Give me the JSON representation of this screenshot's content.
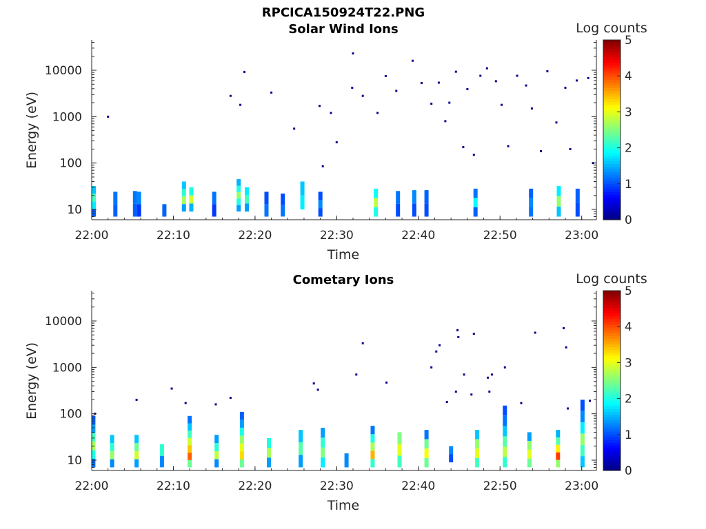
{
  "figure": {
    "title": "RPCICA150924T22.PNG"
  },
  "colors": {
    "axis": "#262626",
    "colormap": "jet"
  },
  "chart_data": [
    {
      "type": "heatmap",
      "title": "Solar Wind Ions",
      "xlabel": "Time",
      "ylabel": "Energy (eV)",
      "colorbar_label": "Log counts",
      "x_ticks": [
        "22:00",
        "22:10",
        "22:20",
        "22:30",
        "22:40",
        "22:50",
        "23:00"
      ],
      "xlim": [
        "22:00",
        "23:01.8"
      ],
      "yscale": "log",
      "ylim": [
        6,
        45000
      ],
      "y_ticks": [
        10,
        100,
        1000,
        10000
      ],
      "y_tick_labels": [
        "10",
        "100",
        "1000",
        "10000"
      ],
      "clim": [
        0,
        5
      ],
      "colorbar_ticks": [
        "0",
        "1",
        "2",
        "3",
        "4",
        "5"
      ],
      "columns": [
        {
          "t": 0.25,
          "e": [
            7,
            32
          ],
          "v": [
            1.1,
            1.8,
            2.2,
            1.6
          ]
        },
        {
          "t": 2.9,
          "e": [
            7,
            24
          ],
          "v": [
            1.1,
            1.2
          ]
        },
        {
          "t": 5.3,
          "e": [
            7,
            25
          ],
          "v": [
            1.1,
            1.2
          ]
        },
        {
          "t": 5.8,
          "e": [
            7,
            24
          ],
          "v": [
            0.9,
            1.3
          ]
        },
        {
          "t": 8.9,
          "e": [
            7,
            13
          ],
          "v": [
            1.1
          ]
        },
        {
          "t": 11.3,
          "e": [
            9,
            40
          ],
          "v": [
            1.4,
            2.7,
            2.1,
            1.6
          ]
        },
        {
          "t": 12.2,
          "e": [
            9,
            30
          ],
          "v": [
            1.5,
            2.9,
            2.0
          ]
        },
        {
          "t": 15.0,
          "e": [
            7,
            24
          ],
          "v": [
            0.9,
            1.2
          ]
        },
        {
          "t": 18.0,
          "e": [
            9,
            45
          ],
          "v": [
            1.4,
            2.0,
            2.6,
            2.0,
            1.5
          ]
        },
        {
          "t": 19.0,
          "e": [
            9,
            30
          ],
          "v": [
            1.4,
            2.2,
            1.8
          ]
        },
        {
          "t": 21.4,
          "e": [
            7,
            24
          ],
          "v": [
            1.2,
            1.0
          ]
        },
        {
          "t": 23.4,
          "e": [
            7,
            22
          ],
          "v": [
            1.2,
            1.0
          ]
        },
        {
          "t": 25.8,
          "e": [
            10,
            40
          ],
          "v": [
            1.8,
            1.6
          ]
        },
        {
          "t": 28.0,
          "e": [
            7,
            24
          ],
          "v": [
            1.0,
            1.3,
            1.0
          ]
        },
        {
          "t": 34.8,
          "e": [
            7,
            28
          ],
          "v": [
            2.0,
            2.8,
            1.9
          ]
        },
        {
          "t": 37.5,
          "e": [
            7,
            25
          ],
          "v": [
            1.0,
            1.2
          ]
        },
        {
          "t": 39.5,
          "e": [
            7,
            26
          ],
          "v": [
            1.0,
            1.3
          ]
        },
        {
          "t": 41.0,
          "e": [
            7,
            26
          ],
          "v": [
            1.0,
            1.1
          ]
        },
        {
          "t": 47.0,
          "e": [
            7,
            28
          ],
          "v": [
            1.1,
            1.9,
            1.2
          ]
        },
        {
          "t": 53.8,
          "e": [
            7,
            28
          ],
          "v": [
            1.2,
            1.3,
            1.1
          ]
        },
        {
          "t": 57.2,
          "e": [
            7,
            32
          ],
          "v": [
            1.6,
            2.6,
            1.8
          ]
        },
        {
          "t": 59.5,
          "e": [
            7,
            28
          ],
          "v": [
            1.0,
            1.1
          ]
        }
      ],
      "scatter": [
        [
          2.0,
          1000
        ],
        [
          17.0,
          2800
        ],
        [
          18.2,
          1800
        ],
        [
          18.7,
          9200
        ],
        [
          22.0,
          3300
        ],
        [
          24.8,
          550
        ],
        [
          27.9,
          1700
        ],
        [
          28.3,
          85
        ],
        [
          29.3,
          1200
        ],
        [
          30.0,
          280
        ],
        [
          32.0,
          23000
        ],
        [
          31.9,
          4200
        ],
        [
          33.2,
          2800
        ],
        [
          35.0,
          1200
        ],
        [
          36.0,
          7500
        ],
        [
          37.3,
          3600
        ],
        [
          39.3,
          16000
        ],
        [
          40.4,
          5300
        ],
        [
          41.6,
          1900
        ],
        [
          42.5,
          5400
        ],
        [
          43.3,
          800
        ],
        [
          43.8,
          2000
        ],
        [
          44.6,
          9300
        ],
        [
          45.5,
          220
        ],
        [
          46.0,
          3900
        ],
        [
          46.8,
          150
        ],
        [
          47.6,
          7600
        ],
        [
          48.4,
          11000
        ],
        [
          49.5,
          5800
        ],
        [
          50.2,
          1800
        ],
        [
          51.0,
          230
        ],
        [
          52.1,
          7600
        ],
        [
          53.2,
          4700
        ],
        [
          53.9,
          1500
        ],
        [
          55.0,
          180
        ],
        [
          55.8,
          9500
        ],
        [
          56.9,
          750
        ],
        [
          58.0,
          4200
        ],
        [
          58.6,
          200
        ],
        [
          59.4,
          6000
        ],
        [
          60.8,
          6800
        ],
        [
          61.4,
          100
        ]
      ]
    },
    {
      "type": "heatmap",
      "title": "Cometary Ions",
      "xlabel": "Time",
      "ylabel": "Energy (eV)",
      "colorbar_label": "Log counts",
      "x_ticks": [
        "22:00",
        "22:10",
        "22:20",
        "22:30",
        "22:40",
        "22:50",
        "23:00"
      ],
      "xlim": [
        "22:00",
        "23:01.8"
      ],
      "yscale": "log",
      "ylim": [
        6,
        45000
      ],
      "y_ticks": [
        10,
        100,
        1000,
        10000
      ],
      "y_tick_labels": [
        "10",
        "100",
        "1000",
        "10000"
      ],
      "clim": [
        0,
        5
      ],
      "colorbar_ticks": [
        "0",
        "1",
        "2",
        "3",
        "4",
        "5"
      ],
      "columns": [
        {
          "t": 0.2,
          "e": [
            7,
            90
          ],
          "v": [
            1.2,
            2.0,
            2.7,
            2.2,
            1.4,
            1.1
          ]
        },
        {
          "t": 2.5,
          "e": [
            7,
            35
          ],
          "v": [
            1.3,
            2.6,
            2.1,
            1.6
          ]
        },
        {
          "t": 5.5,
          "e": [
            7,
            35
          ],
          "v": [
            1.4,
            2.9,
            2.4,
            1.6
          ]
        },
        {
          "t": 8.6,
          "e": [
            7,
            22
          ],
          "v": [
            1.3,
            2.1
          ]
        },
        {
          "t": 12.0,
          "e": [
            7,
            90
          ],
          "v": [
            2.4,
            3.9,
            3.4,
            2.9,
            2.2,
            1.6,
            1.2
          ]
        },
        {
          "t": 15.3,
          "e": [
            7,
            35
          ],
          "v": [
            1.3,
            2.8,
            2.1,
            1.4
          ]
        },
        {
          "t": 18.4,
          "e": [
            7,
            110
          ],
          "v": [
            2.4,
            3.3,
            3.0,
            2.6,
            2.0,
            1.4,
            1.1
          ]
        },
        {
          "t": 21.7,
          "e": [
            7,
            30
          ],
          "v": [
            1.4,
            2.7,
            2.0
          ]
        },
        {
          "t": 25.6,
          "e": [
            7,
            45
          ],
          "v": [
            1.4,
            2.3,
            1.6
          ]
        },
        {
          "t": 28.3,
          "e": [
            7,
            50
          ],
          "v": [
            1.8,
            2.5,
            2.1,
            1.4
          ]
        },
        {
          "t": 31.2,
          "e": [
            7,
            14
          ],
          "v": [
            1.3
          ]
        },
        {
          "t": 34.4,
          "e": [
            7,
            55
          ],
          "v": [
            2.1,
            3.5,
            2.7,
            2.0,
            1.2
          ]
        },
        {
          "t": 37.7,
          "e": [
            7,
            40
          ],
          "v": [
            2.2,
            3.0,
            2.5
          ]
        },
        {
          "t": 41.0,
          "e": [
            7,
            45
          ],
          "v": [
            2.4,
            3.1,
            2.4,
            1.2
          ]
        },
        {
          "t": 44.0,
          "e": [
            9,
            20
          ],
          "v": [
            1.0,
            1.3
          ]
        },
        {
          "t": 47.2,
          "e": [
            7,
            45
          ],
          "v": [
            2.2,
            3.0,
            2.6,
            1.6
          ]
        },
        {
          "t": 50.6,
          "e": [
            7,
            150
          ],
          "v": [
            2.1,
            2.8,
            2.3,
            1.6,
            1.2,
            1.0
          ]
        },
        {
          "t": 53.6,
          "e": [
            7,
            40
          ],
          "v": [
            2.4,
            3.0,
            2.6,
            1.4
          ]
        },
        {
          "t": 57.1,
          "e": [
            7,
            45
          ],
          "v": [
            2.6,
            4.1,
            3.2,
            2.3,
            1.5
          ]
        },
        {
          "t": 60.1,
          "e": [
            7,
            200
          ],
          "v": [
            1.6,
            2.2,
            2.6,
            1.8,
            1.3,
            1.0
          ]
        }
      ],
      "scatter": [
        [
          0.4,
          100
        ],
        [
          5.5,
          200
        ],
        [
          9.8,
          350
        ],
        [
          11.5,
          170
        ],
        [
          15.2,
          160
        ],
        [
          17.0,
          220
        ],
        [
          27.2,
          450
        ],
        [
          27.7,
          330
        ],
        [
          33.2,
          3300
        ],
        [
          32.4,
          700
        ],
        [
          36.1,
          470
        ],
        [
          41.6,
          1000
        ],
        [
          42.6,
          3000
        ],
        [
          42.2,
          2200
        ],
        [
          44.8,
          6300
        ],
        [
          44.9,
          4500
        ],
        [
          46.8,
          5300
        ],
        [
          45.6,
          700
        ],
        [
          48.5,
          600
        ],
        [
          49.0,
          700
        ],
        [
          50.6,
          1000
        ],
        [
          54.3,
          5600
        ],
        [
          57.8,
          7000
        ],
        [
          58.1,
          2700
        ],
        [
          43.5,
          180
        ],
        [
          44.6,
          300
        ],
        [
          46.5,
          260
        ],
        [
          48.7,
          300
        ],
        [
          52.6,
          170
        ],
        [
          58.3,
          130
        ],
        [
          61.0,
          190
        ]
      ]
    }
  ]
}
